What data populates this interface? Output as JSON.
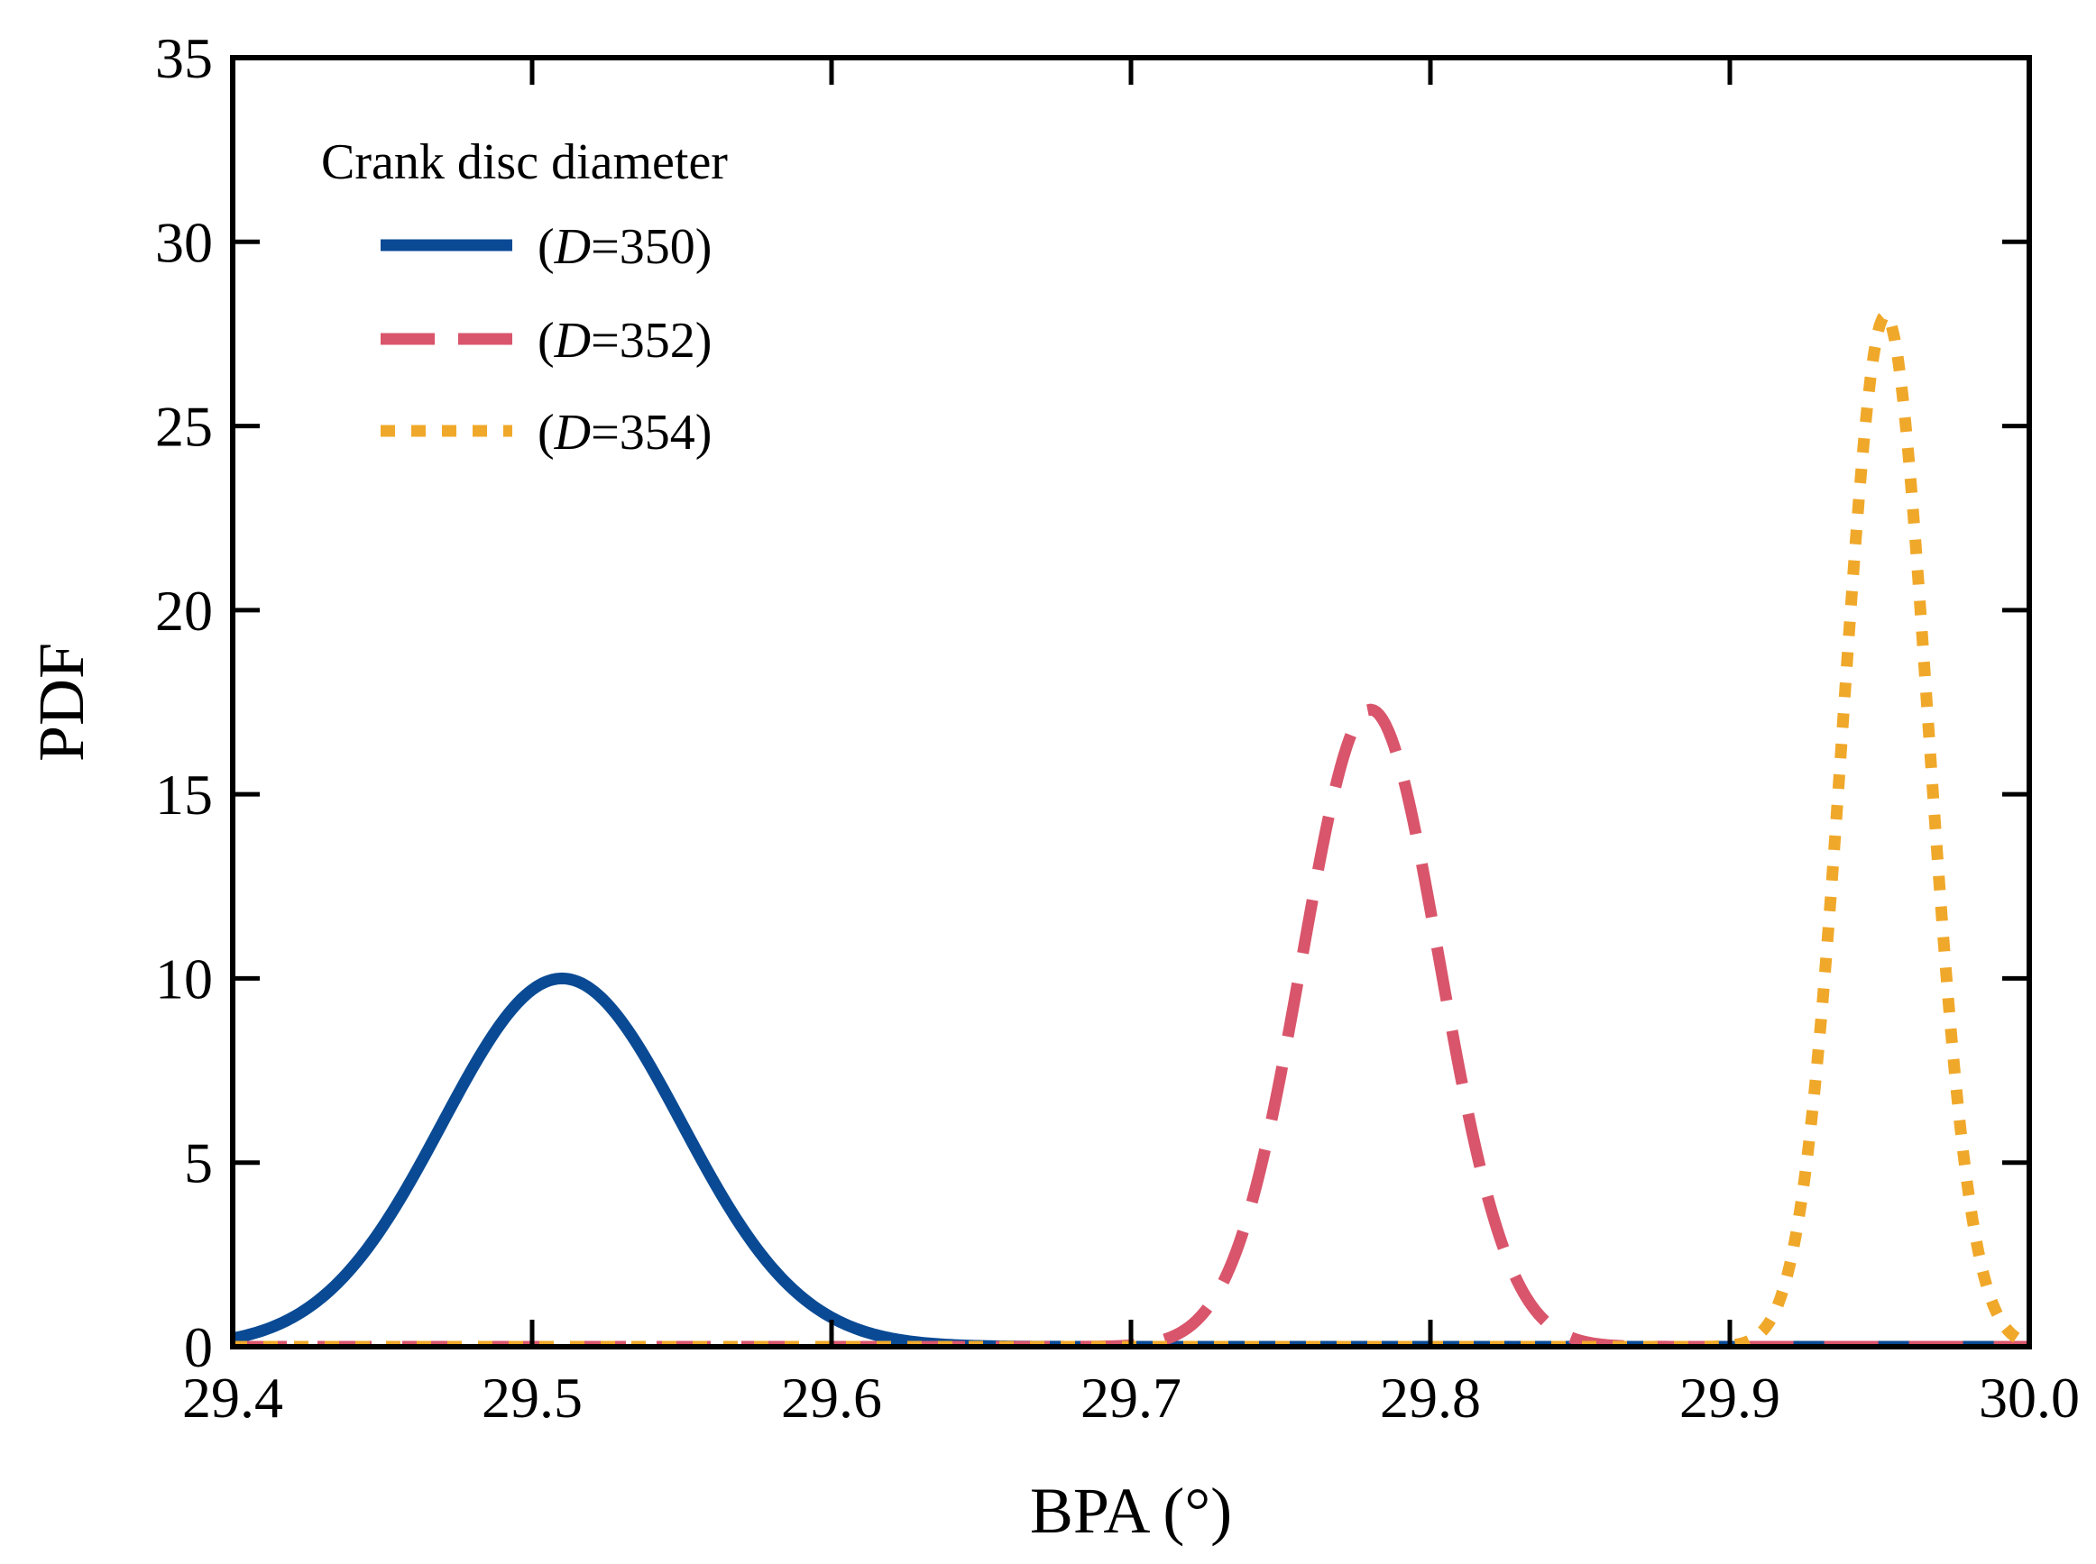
{
  "chart_data": {
    "type": "line",
    "title": "",
    "xlabel": "BPA (°)",
    "ylabel": "PDF",
    "xlim": [
      29.4,
      30.0
    ],
    "ylim": [
      0,
      35
    ],
    "xticks": [
      29.4,
      29.5,
      29.6,
      29.7,
      29.8,
      29.9,
      30.0
    ],
    "xtick_labels": [
      "29.4",
      "29.5",
      "29.6",
      "29.7",
      "29.8",
      "29.9",
      "30.0"
    ],
    "yticks": [
      0,
      5,
      10,
      15,
      20,
      25,
      30,
      35
    ],
    "ytick_labels": [
      "0",
      "5",
      "10",
      "15",
      "20",
      "25",
      "30",
      "35"
    ],
    "grid": false,
    "legend": {
      "title": "Crank disc diameter",
      "position": "top-left",
      "entries": [
        {
          "prefix": "(",
          "var": "D",
          "suffix": "=350)"
        },
        {
          "prefix": "(",
          "var": "D",
          "suffix": "=352)"
        },
        {
          "prefix": "(",
          "var": "D",
          "suffix": "=354)"
        }
      ]
    },
    "series": [
      {
        "name": "(D=350)",
        "style": "solid",
        "color": "#0a4a94",
        "distribution": "normal",
        "mean": 29.51,
        "std": 0.04,
        "peak": 10.0
      },
      {
        "name": "(D=352)",
        "style": "dashed",
        "color": "#d9556b",
        "distribution": "normal",
        "mean": 29.78,
        "std": 0.023,
        "peak": 17.3
      },
      {
        "name": "(D=354)",
        "style": "dotted",
        "color": "#f0a82a",
        "distribution": "normal",
        "mean": 29.952,
        "std": 0.0142,
        "peak": 28.0
      }
    ]
  }
}
